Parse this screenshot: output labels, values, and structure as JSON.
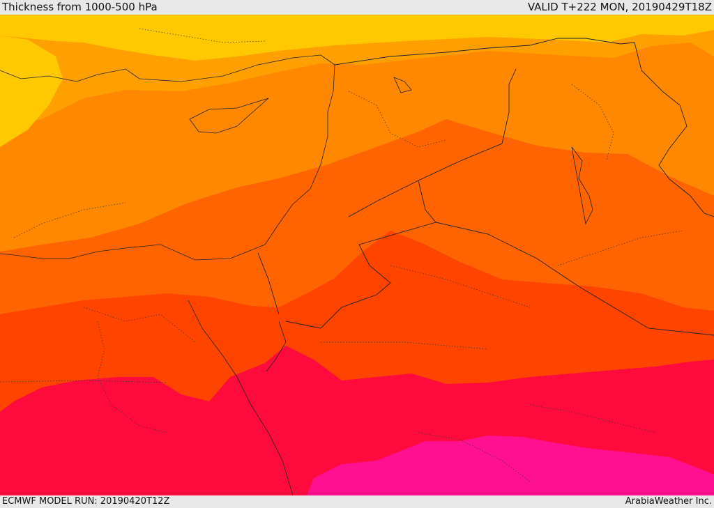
{
  "header": {
    "title": "Thickness from 1000-500 hPa",
    "valid": "VALID T+222 MON, 20190429T18Z"
  },
  "footer": {
    "model_run": "ECMWF MODEL RUN: 20190420T12Z",
    "credit": "ArabiaWeather Inc."
  },
  "map": {
    "region": "Eastern Mediterranean, Levant and Arabian Peninsula",
    "field": "1000-500 hPa thickness",
    "legend": "none",
    "colors": {
      "band_1": "#ffc800",
      "band_2": "#ffa000",
      "band_3": "#ff8800",
      "band_4": "#ff6400",
      "band_5": "#ff4400",
      "band_6": "#ff0a3c",
      "band_7": "#ff1090",
      "header_bg": "#e8e8e8"
    }
  }
}
